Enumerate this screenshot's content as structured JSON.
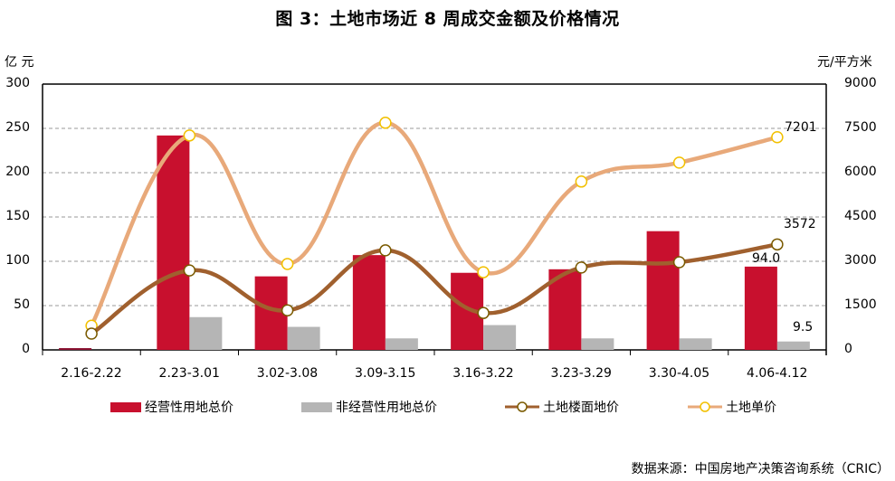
{
  "title": "图 3：土地市场近 8 周成交金额及价格情况",
  "left_unit": "亿 元",
  "right_unit": "元/平方米",
  "source": "数据来源：中国房地产决策咨询系统（CRIC）",
  "left_ticks": [
    "0",
    "50",
    "100",
    "150",
    "200",
    "250",
    "300"
  ],
  "right_ticks": [
    "0",
    "1500",
    "3000",
    "4500",
    "6000",
    "7500",
    "9000"
  ],
  "legend": [
    {
      "label": "经营性用地总价",
      "color": "#C8102E",
      "type": "bar"
    },
    {
      "label": "非经营性用地总价",
      "color": "#B5B5B5",
      "type": "bar"
    },
    {
      "label": "土地楼面地价",
      "color": "#A0602E",
      "type": "line"
    },
    {
      "label": "土地单价",
      "color": "#E8A97A",
      "type": "line"
    }
  ],
  "data_labels": {
    "bar_last": "94.0",
    "grey_last": "9.5",
    "floor_last": "3572",
    "unit_last": "7201"
  },
  "chart_data": {
    "type": "bar",
    "title": "图 3：土地市场近 8 周成交金额及价格情况",
    "xlabel": "",
    "ylabel": "亿 元",
    "ylabel_right": "元/平方米",
    "ylim": [
      0,
      300
    ],
    "ylim_right": [
      0,
      9000
    ],
    "grid": true,
    "legend_position": "bottom",
    "categories": [
      "2.16-2.22",
      "2.23-3.01",
      "3.02-3.08",
      "3.09-3.15",
      "3.16-3.22",
      "3.23-3.29",
      "3.30-4.05",
      "4.06-4.12"
    ],
    "series": [
      {
        "name": "经营性用地总价",
        "type": "bar",
        "axis": "left",
        "values": [
          2,
          242,
          83,
          107,
          87,
          91,
          134,
          94.0
        ]
      },
      {
        "name": "非经营性用地总价",
        "type": "bar",
        "axis": "left",
        "values": [
          0,
          37,
          26,
          13,
          28,
          13,
          13,
          9.5
        ]
      },
      {
        "name": "土地楼面地价",
        "type": "line",
        "axis": "right",
        "values": [
          550,
          2690,
          1340,
          3370,
          1250,
          2790,
          2970,
          3572
        ]
      },
      {
        "name": "土地单价",
        "type": "line",
        "axis": "right",
        "values": [
          820,
          7260,
          2910,
          7690,
          2630,
          5700,
          6340,
          7201
        ]
      }
    ]
  }
}
